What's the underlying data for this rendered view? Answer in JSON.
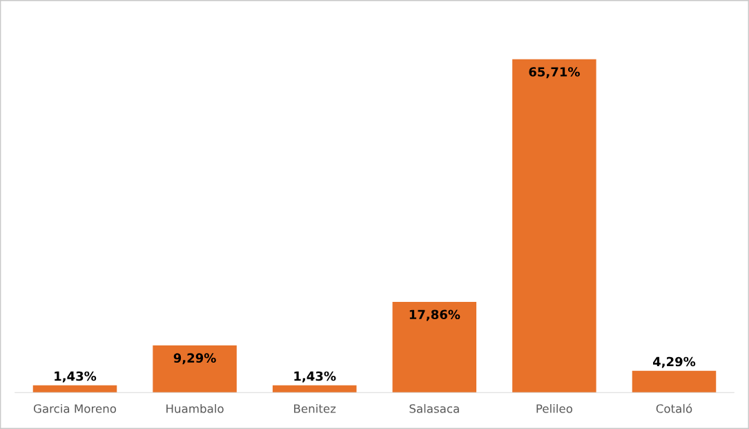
{
  "chart_data": {
    "type": "bar",
    "categories": [
      "Garcia Moreno",
      "Huambalo",
      "Benitez",
      "Salasaca",
      "Pelileo",
      "Cotaló"
    ],
    "values": [
      1.43,
      9.29,
      1.43,
      17.86,
      65.71,
      4.29
    ],
    "value_labels": [
      "1,43%",
      "9,29%",
      "1,43%",
      "17,86%",
      "65,71%",
      "4,29%"
    ],
    "color": "#e8722a",
    "grid": false,
    "legend": false
  }
}
